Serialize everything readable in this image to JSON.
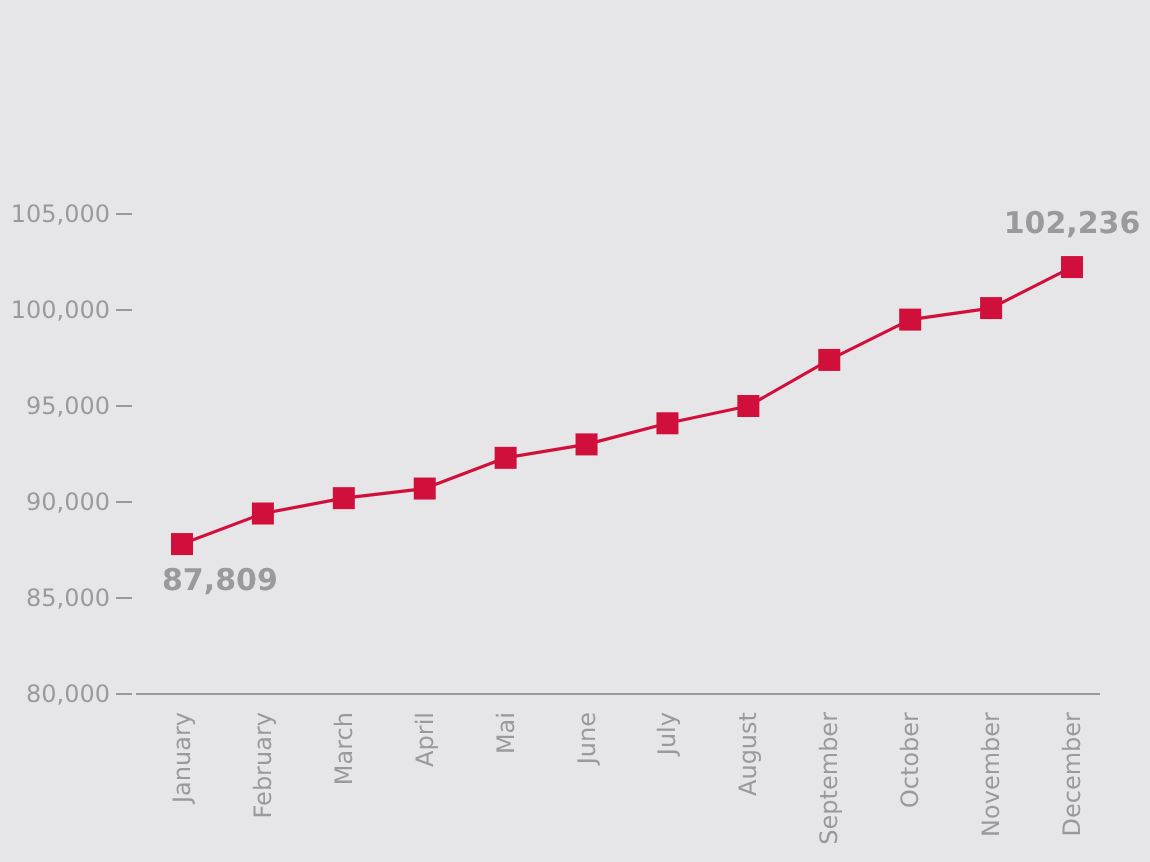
{
  "chart_data": {
    "type": "line",
    "categories": [
      "January",
      "February",
      "March",
      "April",
      "Mai",
      "June",
      "July",
      "August",
      "September",
      "October",
      "November",
      "December"
    ],
    "series": [
      {
        "color": "#d0103a",
        "values": [
          87809,
          89400,
          90200,
          90700,
          92300,
          93000,
          94100,
          95000,
          97400,
          99500,
          100100,
          102236
        ],
        "value_labels": [
          "87,809",
          null,
          null,
          null,
          null,
          null,
          null,
          null,
          null,
          null,
          null,
          "102,236"
        ]
      }
    ],
    "ylim": [
      80000,
      105000
    ],
    "yticks": [
      {
        "value": 80000,
        "label": "80,000"
      },
      {
        "value": 85000,
        "label": "85,000"
      },
      {
        "value": 90000,
        "label": "90,000"
      },
      {
        "value": 95000,
        "label": "95,000"
      },
      {
        "value": 100000,
        "label": "100,000"
      },
      {
        "value": 105000,
        "label": "105,000"
      }
    ],
    "marker": "square"
  }
}
